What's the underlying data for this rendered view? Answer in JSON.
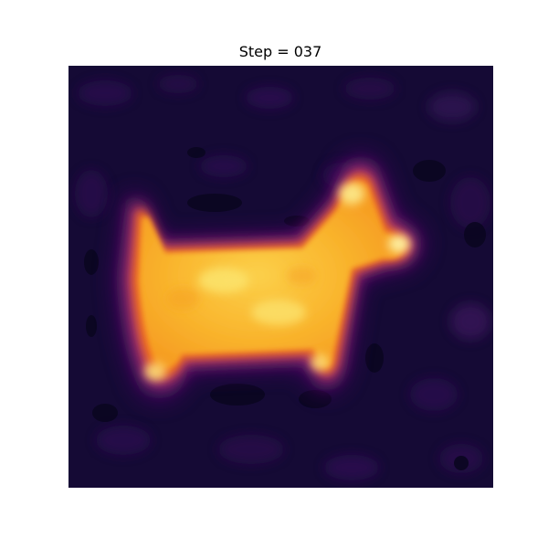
{
  "figure": {
    "title": "Step = 037"
  },
  "colormap": {
    "name": "inferno",
    "background": "#140a33",
    "low": "#1a0a3a",
    "mid_low": "#5c126e",
    "mid": "#b7356b",
    "mid_high": "#f37819",
    "high": "#fac228",
    "peak": "#fcf2a4"
  },
  "image": {
    "subject": "dog-silhouette-heatmap",
    "axes_visible": false
  }
}
